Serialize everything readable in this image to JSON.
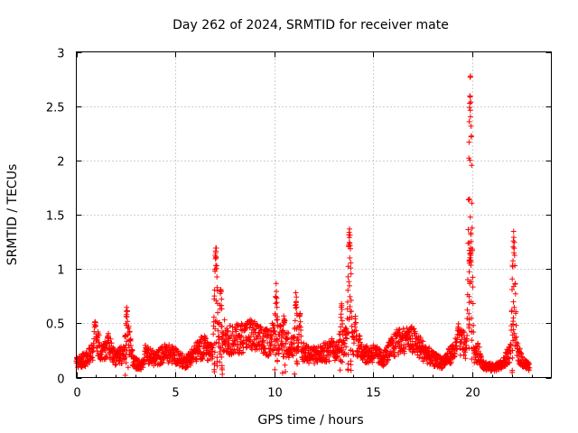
{
  "chart_data": {
    "type": "scatter",
    "title": "Day 262 of 2024, SRMTID for receiver mate",
    "xlabel": "GPS time / hours",
    "ylabel": "SRMTID / TECUs",
    "xlim": [
      0,
      24
    ],
    "ylim": [
      0,
      3
    ],
    "xticks": [
      0,
      5,
      10,
      15,
      20
    ],
    "yticks": [
      0,
      0.5,
      1,
      1.5,
      2,
      2.5,
      3
    ],
    "xtick_labels": [
      "0",
      "5",
      "10",
      "15",
      "20"
    ],
    "ytick_labels": [
      "0",
      "0.5",
      "1",
      "1.5",
      "2",
      "2.5",
      "3"
    ],
    "grid": true,
    "marker": "+",
    "series": [
      {
        "name": "SRMTID",
        "color": "#ff0000",
        "baseline": [
          [
            0.0,
            0.12
          ],
          [
            0.5,
            0.15
          ],
          [
            0.8,
            0.22
          ],
          [
            1.0,
            0.3
          ],
          [
            1.3,
            0.2
          ],
          [
            1.7,
            0.25
          ],
          [
            2.0,
            0.15
          ],
          [
            2.4,
            0.2
          ],
          [
            2.6,
            0.35
          ],
          [
            2.9,
            0.12
          ],
          [
            3.3,
            0.1
          ],
          [
            3.6,
            0.18
          ],
          [
            4.0,
            0.15
          ],
          [
            4.5,
            0.2
          ],
          [
            5.0,
            0.18
          ],
          [
            5.5,
            0.12
          ],
          [
            6.0,
            0.2
          ],
          [
            6.4,
            0.25
          ],
          [
            6.8,
            0.2
          ],
          [
            7.0,
            0.15
          ],
          [
            7.4,
            0.35
          ],
          [
            7.8,
            0.3
          ],
          [
            8.3,
            0.32
          ],
          [
            8.8,
            0.35
          ],
          [
            9.3,
            0.3
          ],
          [
            9.7,
            0.28
          ],
          [
            10.0,
            0.35
          ],
          [
            10.5,
            0.28
          ],
          [
            11.0,
            0.25
          ],
          [
            11.5,
            0.2
          ],
          [
            12.0,
            0.18
          ],
          [
            12.5,
            0.2
          ],
          [
            13.0,
            0.22
          ],
          [
            13.5,
            0.3
          ],
          [
            13.9,
            0.3
          ],
          [
            14.3,
            0.25
          ],
          [
            14.7,
            0.18
          ],
          [
            15.0,
            0.2
          ],
          [
            15.5,
            0.15
          ],
          [
            16.0,
            0.25
          ],
          [
            16.5,
            0.3
          ],
          [
            17.0,
            0.3
          ],
          [
            17.5,
            0.22
          ],
          [
            18.0,
            0.15
          ],
          [
            18.5,
            0.12
          ],
          [
            19.0,
            0.2
          ],
          [
            19.5,
            0.3
          ],
          [
            19.9,
            0.15
          ],
          [
            20.3,
            0.2
          ],
          [
            20.6,
            0.1
          ],
          [
            21.0,
            0.08
          ],
          [
            21.5,
            0.1
          ],
          [
            21.9,
            0.2
          ],
          [
            22.3,
            0.2
          ],
          [
            22.6,
            0.12
          ],
          [
            22.9,
            0.08
          ]
        ],
        "peaks": [
          [
            0.95,
            0.53
          ],
          [
            1.6,
            0.42
          ],
          [
            2.55,
            0.65
          ],
          [
            3.5,
            0.3
          ],
          [
            6.5,
            0.38
          ],
          [
            7.05,
            1.22
          ],
          [
            7.3,
            0.85
          ],
          [
            8.5,
            0.5
          ],
          [
            10.1,
            0.85
          ],
          [
            10.5,
            0.6
          ],
          [
            11.1,
            0.78
          ],
          [
            11.3,
            0.58
          ],
          [
            12.9,
            0.38
          ],
          [
            13.4,
            0.68
          ],
          [
            13.8,
            1.43
          ],
          [
            14.1,
            0.55
          ],
          [
            16.2,
            0.45
          ],
          [
            16.7,
            0.42
          ],
          [
            19.3,
            0.5
          ],
          [
            19.9,
            2.9
          ],
          [
            22.1,
            1.32
          ]
        ],
        "point_count": 2150
      }
    ]
  }
}
